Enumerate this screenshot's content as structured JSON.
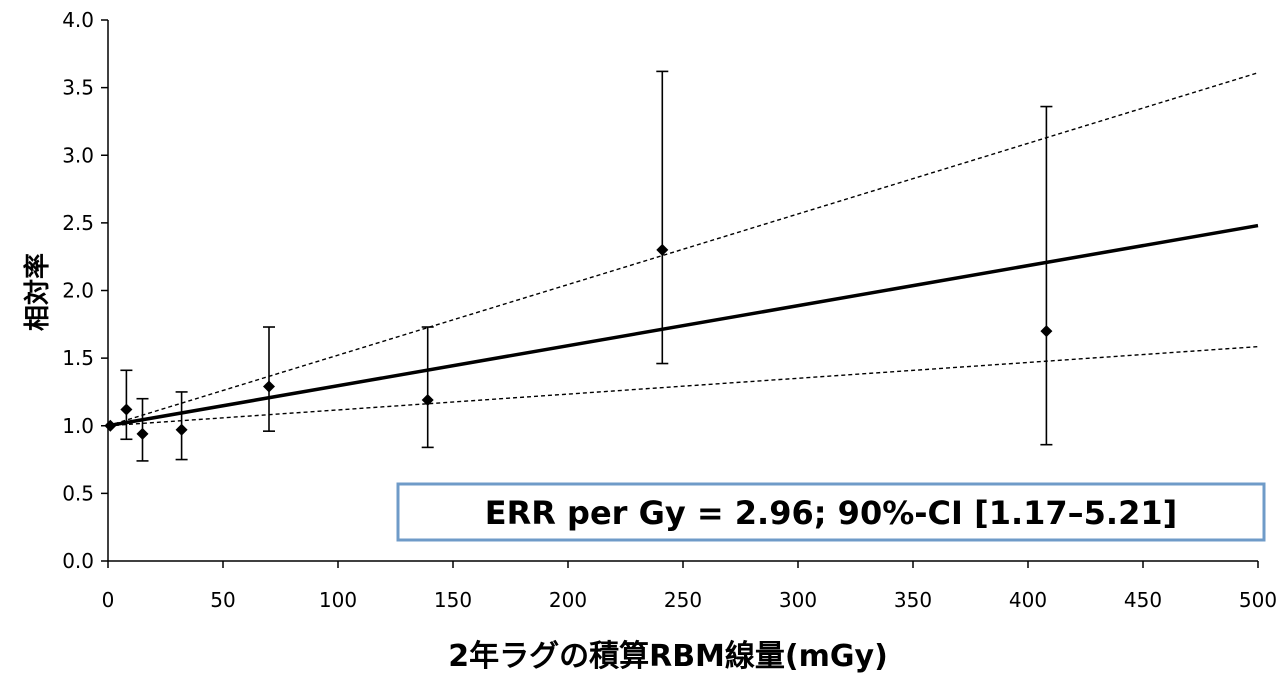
{
  "chart_data": {
    "type": "scatter",
    "xlabel": "2年ラグの積算RBM線量(mGy)",
    "ylabel": "相対率",
    "xlim": [
      0,
      500
    ],
    "ylim": [
      0,
      4.0
    ],
    "x_ticks": [
      "0",
      "50",
      "100",
      "150",
      "200",
      "250",
      "300",
      "350",
      "400",
      "450",
      "500"
    ],
    "y_ticks": [
      "0.0",
      "0.5",
      "1.0",
      "1.5",
      "2.0",
      "2.5",
      "3.0",
      "3.5",
      "4.0"
    ],
    "grid": false,
    "points": [
      {
        "x": 1,
        "y": 1.0,
        "lo": 1.0,
        "hi": 1.0
      },
      {
        "x": 8,
        "y": 1.12,
        "lo": 0.9,
        "hi": 1.41
      },
      {
        "x": 15,
        "y": 0.94,
        "lo": 0.74,
        "hi": 1.2
      },
      {
        "x": 32,
        "y": 0.97,
        "lo": 0.75,
        "hi": 1.25
      },
      {
        "x": 70,
        "y": 1.29,
        "lo": 0.96,
        "hi": 1.73
      },
      {
        "x": 139,
        "y": 1.19,
        "lo": 0.84,
        "hi": 1.73
      },
      {
        "x": 241,
        "y": 2.3,
        "lo": 1.46,
        "hi": 3.62
      },
      {
        "x": 408,
        "y": 1.7,
        "lo": 0.86,
        "hi": 3.36
      }
    ],
    "fit_lines": [
      {
        "style": "solid",
        "x": [
          0,
          500
        ],
        "y": [
          1.0,
          2.48
        ]
      },
      {
        "style": "dashed",
        "x": [
          0,
          500
        ],
        "y": [
          1.0,
          3.61
        ]
      },
      {
        "style": "dashed",
        "x": [
          0,
          500
        ],
        "y": [
          1.0,
          1.585
        ]
      }
    ],
    "annotation": "ERR per Gy = 2.96; 90%-CI [1.17–5.21]",
    "colors": {
      "data": "#000000",
      "annotation_border": "#6f9bc8"
    }
  }
}
